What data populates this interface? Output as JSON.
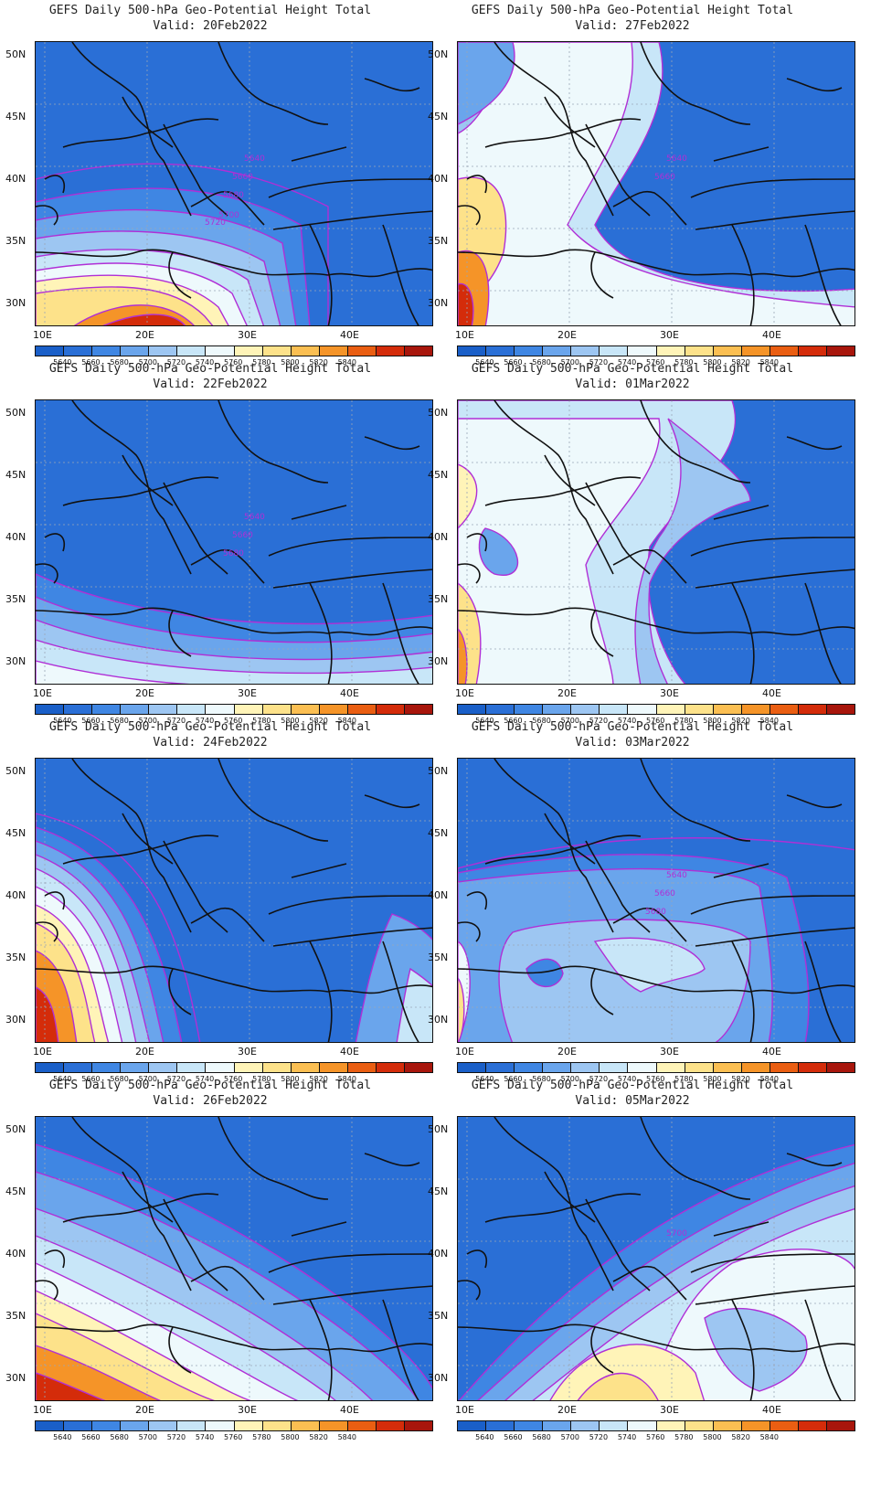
{
  "panels": [
    {
      "line1": "GEFS Daily 500-hPa Geo-Potential Height Total",
      "line2": "Valid: 20Feb2022",
      "contour_labels": [
        "5640",
        "5660",
        "5680",
        "5700",
        "5720"
      ]
    },
    {
      "line1": "GEFS Daily 500-hPa Geo-Potential Height Total",
      "line2": "Valid: 27Feb2022",
      "contour_labels": [
        "5640",
        "5660"
      ]
    },
    {
      "line1": "GEFS Daily 500-hPa Geo-Potential Height Total",
      "line2": "Valid: 22Feb2022",
      "contour_labels": [
        "5640",
        "5660",
        "5680"
      ]
    },
    {
      "line1": "GEFS Daily 500-hPa Geo-Potential Height Total",
      "line2": "Valid: 01Mar2022",
      "contour_labels": []
    },
    {
      "line1": "GEFS Daily 500-hPa Geo-Potential Height Total",
      "line2": "Valid: 24Feb2022",
      "contour_labels": []
    },
    {
      "line1": "GEFS Daily 500-hPa Geo-Potential Height Total",
      "line2": "Valid: 03Mar2022",
      "contour_labels": [
        "5640",
        "5660",
        "5680"
      ]
    },
    {
      "line1": "GEFS Daily 500-hPa Geo-Potential Height Total",
      "line2": "Valid: 26Feb2022",
      "contour_labels": []
    },
    {
      "line1": "GEFS Daily 500-hPa Geo-Potential Height Total",
      "line2": "Valid: 05Mar2022",
      "contour_labels": [
        "5700"
      ]
    }
  ],
  "axes": {
    "y_labels": [
      "50N",
      "45N",
      "40N",
      "35N",
      "30N"
    ],
    "x_labels": [
      "10E",
      "20E",
      "30E",
      "40E"
    ]
  },
  "colorbar": {
    "labels": [
      "5640",
      "5660",
      "5680",
      "5700",
      "5720",
      "5740",
      "5760",
      "5780",
      "5800",
      "5820",
      "5840"
    ],
    "colors": [
      "#1a5fc8",
      "#2a6fd6",
      "#3f86e3",
      "#6aa5ec",
      "#9dc6f2",
      "#c8e6f8",
      "#eef9fc",
      "#fff4b8",
      "#fde28a",
      "#fbbf52",
      "#f59428",
      "#ea5e12",
      "#d42c0a",
      "#a8160c"
    ]
  },
  "map_colors": {
    "contour_line": "#b02fd6",
    "coast_line": "#111111",
    "grid_line": "#9aa6b6",
    "contour_label": "#b02fd6"
  }
}
